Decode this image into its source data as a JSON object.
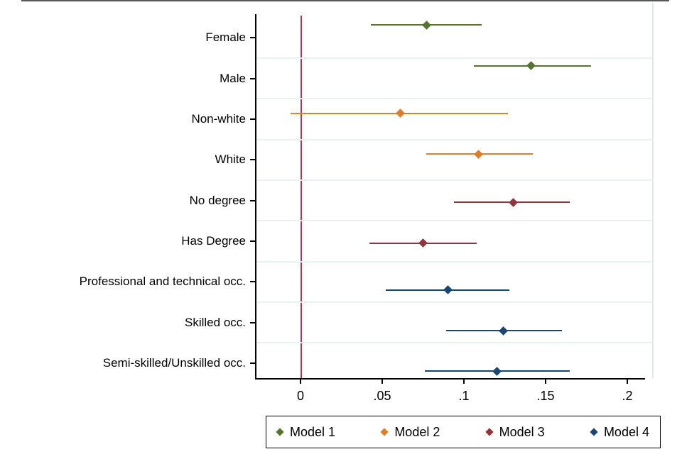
{
  "chart_data": {
    "type": "scatter",
    "subtype": "coefficient-plot-with-95-percent-ci",
    "title": "",
    "xlabel": "",
    "ylabel": "",
    "x_ticks": [
      {
        "label": "0",
        "value": 0
      },
      {
        "label": ".05",
        "value": 0.05
      },
      {
        "label": ".1",
        "value": 0.1
      },
      {
        "label": ".15",
        "value": 0.15
      },
      {
        "label": ".2",
        "value": 0.2
      }
    ],
    "xlim": [
      -0.027,
      0.216
    ],
    "grid": "faint horizontal gridlines between category rows",
    "reference_line": {
      "x": 0,
      "color": "#c13049"
    },
    "categories": [
      "Female",
      "Male",
      "Non-white",
      "White",
      "No degree",
      "Has Degree",
      "Professional and technical occ.",
      "Skilled occ.",
      "Semi-skilled/Unskilled occ."
    ],
    "models": [
      {
        "name": "Model 1",
        "color": "#55752f"
      },
      {
        "name": "Model 2",
        "color": "#dd7e2e"
      },
      {
        "name": "Model 3",
        "color": "#90353b"
      },
      {
        "name": "Model 4",
        "color": "#1a476f"
      }
    ],
    "points": [
      {
        "category": "Female",
        "model": "Model 1",
        "estimate": 0.077,
        "ci_low": 0.043,
        "ci_high": 0.111
      },
      {
        "category": "Male",
        "model": "Model 1",
        "estimate": 0.141,
        "ci_low": 0.106,
        "ci_high": 0.178
      },
      {
        "category": "Non-white",
        "model": "Model 2",
        "estimate": 0.061,
        "ci_low": -0.006,
        "ci_high": 0.127
      },
      {
        "category": "White",
        "model": "Model 2",
        "estimate": 0.109,
        "ci_low": 0.077,
        "ci_high": 0.142
      },
      {
        "category": "No degree",
        "model": "Model 3",
        "estimate": 0.13,
        "ci_low": 0.094,
        "ci_high": 0.165
      },
      {
        "category": "Has Degree",
        "model": "Model 3",
        "estimate": 0.075,
        "ci_low": 0.042,
        "ci_high": 0.108
      },
      {
        "category": "Professional and technical occ.",
        "model": "Model 4",
        "estimate": 0.09,
        "ci_low": 0.052,
        "ci_high": 0.128
      },
      {
        "category": "Skilled occ.",
        "model": "Model 4",
        "estimate": 0.124,
        "ci_low": 0.089,
        "ci_high": 0.16
      },
      {
        "category": "Semi-skilled/Unskilled occ.",
        "model": "Model 4",
        "estimate": 0.12,
        "ci_low": 0.076,
        "ci_high": 0.165
      }
    ],
    "legend": {
      "position": "bottom",
      "labels": [
        "Model 1",
        "Model 2",
        "Model 3",
        "Model 4"
      ]
    }
  }
}
